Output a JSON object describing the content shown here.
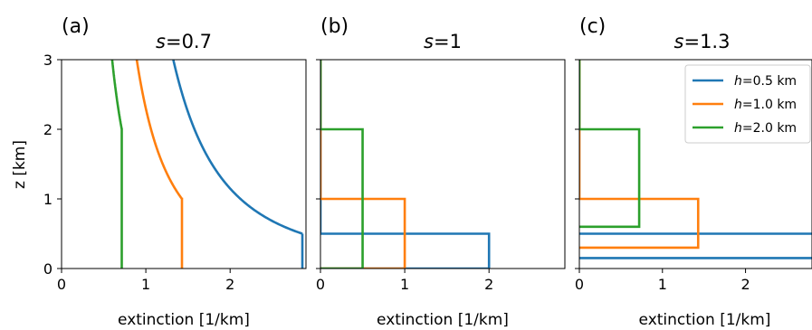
{
  "figure": {
    "ylabel": "z [km]"
  },
  "colors": {
    "h0.5": "#1f77b4",
    "h1.0": "#ff7f0e",
    "h2.0": "#2ca02c",
    "axis": "#000000"
  },
  "legend": {
    "placement": "top-right",
    "panel_index": 2,
    "entries": [
      {
        "prefix": "h",
        "rest": "=0.5 km",
        "color": "#1f77b4"
      },
      {
        "prefix": "h",
        "rest": "=1.0 km",
        "color": "#ff7f0e"
      },
      {
        "prefix": "h",
        "rest": "=2.0 km",
        "color": "#2ca02c"
      }
    ]
  },
  "chart_data": [
    {
      "type": "line",
      "panel_label": "(a)",
      "title_var": "s",
      "title_rest": "=0.7",
      "xlabel": "extinction [1/km]",
      "xlim": [
        0,
        2.9
      ],
      "ylim": [
        0,
        3
      ],
      "xticks": [
        0,
        1,
        2
      ],
      "yticks": [
        0,
        1,
        2,
        3
      ],
      "series": [
        {
          "name": "h=0.5 km",
          "color": "#1f77b4",
          "kind": "power",
          "h": 0.5,
          "s": 0.7
        },
        {
          "name": "h=1.0 km",
          "color": "#ff7f0e",
          "kind": "power",
          "h": 1.0,
          "s": 0.7
        },
        {
          "name": "h=2.0 km",
          "color": "#2ca02c",
          "kind": "power",
          "h": 2.0,
          "s": 0.7
        }
      ]
    },
    {
      "type": "line",
      "panel_label": "(b)",
      "title_var": "s",
      "title_rest": "=1",
      "xlabel": "extinction [1/km]",
      "xlim": [
        0,
        2.9
      ],
      "ylim": [
        0,
        3
      ],
      "xticks": [
        0,
        1,
        2
      ],
      "yticks": [
        0,
        1,
        2,
        3
      ],
      "series": [
        {
          "name": "h=0.5 km",
          "color": "#1f77b4",
          "kind": "step",
          "points": [
            [
              0,
              0
            ],
            [
              2.0,
              0
            ],
            [
              2.0,
              0.5
            ],
            [
              0,
              0.5
            ],
            [
              0,
              3
            ]
          ]
        },
        {
          "name": "h=1.0 km",
          "color": "#ff7f0e",
          "kind": "step",
          "points": [
            [
              0,
              0
            ],
            [
              1.0,
              0
            ],
            [
              1.0,
              1.0
            ],
            [
              0,
              1.0
            ],
            [
              0,
              3
            ]
          ]
        },
        {
          "name": "h=2.0 km",
          "color": "#2ca02c",
          "kind": "step",
          "points": [
            [
              0,
              0
            ],
            [
              0.5,
              0
            ],
            [
              0.5,
              2.0
            ],
            [
              0,
              2.0
            ],
            [
              0,
              3
            ]
          ]
        }
      ]
    },
    {
      "type": "line",
      "panel_label": "(c)",
      "title_var": "s",
      "title_rest": "=1.3",
      "xlabel": "extinction [1/km]",
      "xlim": [
        0,
        2.8
      ],
      "ylim": [
        0,
        3
      ],
      "xticks": [
        0,
        1,
        2
      ],
      "yticks": [
        0,
        1,
        2,
        3
      ],
      "series": [
        {
          "name": "h=0.5 km",
          "color": "#1f77b4",
          "kind": "step",
          "points": [
            [
              0,
              0.5
            ],
            [
              2.9,
              0.5
            ]
          ]
        },
        {
          "name": "h=0.5 km (lower)",
          "color": "#1f77b4",
          "kind": "step",
          "points": [
            [
              0,
              0.15
            ],
            [
              2.9,
              0.15
            ]
          ]
        },
        {
          "name": "h=1.0 km",
          "color": "#ff7f0e",
          "kind": "step",
          "points": [
            [
              0,
              0.3
            ],
            [
              1.43,
              0.3
            ],
            [
              1.43,
              1.0
            ],
            [
              0,
              1.0
            ],
            [
              0,
              3
            ]
          ]
        },
        {
          "name": "h=2.0 km",
          "color": "#2ca02c",
          "kind": "step",
          "points": [
            [
              0,
              0.6
            ],
            [
              0.72,
              0.6
            ],
            [
              0.72,
              2.0
            ],
            [
              0,
              2.0
            ],
            [
              0,
              3
            ]
          ]
        }
      ]
    }
  ]
}
